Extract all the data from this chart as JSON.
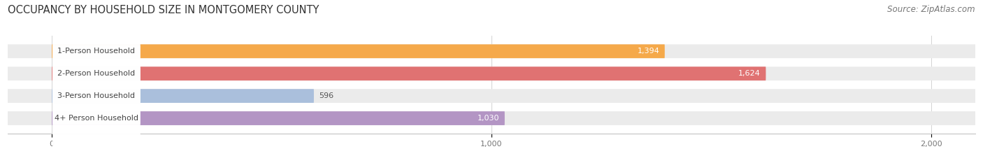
{
  "title": "OCCUPANCY BY HOUSEHOLD SIZE IN MONTGOMERY COUNTY",
  "source": "Source: ZipAtlas.com",
  "categories": [
    "1-Person Household",
    "2-Person Household",
    "3-Person Household",
    "4+ Person Household"
  ],
  "values": [
    1394,
    1624,
    596,
    1030
  ],
  "bar_colors": [
    "#F5A94A",
    "#E07272",
    "#AABFDC",
    "#B395C4"
  ],
  "bar_bg_color": "#EBEBEB",
  "data_max": 2000,
  "xlim_left": -100,
  "xlim_right": 2100,
  "xticks": [
    0,
    1000,
    2000
  ],
  "xtick_labels": [
    "0",
    "1,000",
    "2,000"
  ],
  "figure_bg": "#FFFFFF",
  "title_fontsize": 10.5,
  "source_fontsize": 8.5,
  "bar_label_fontsize": 8,
  "value_fontsize": 8
}
